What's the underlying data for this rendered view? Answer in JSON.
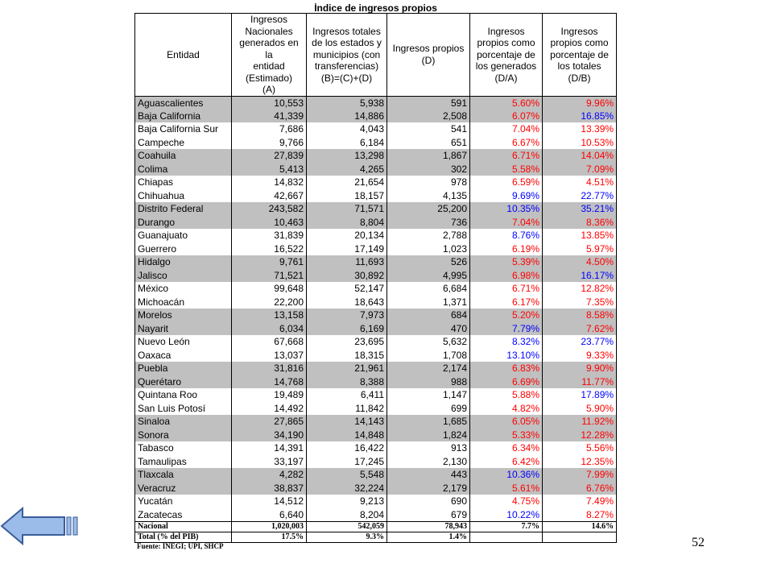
{
  "title": "Índice de ingresos propios",
  "headers": [
    "Entidad",
    "Ingresos\nNacionales\ngenerados en la\nentidad\n(Estimado)\n(A)",
    "Ingresos totales\nde los estados y\nmunicipios (con\ntransferencias)\n(B)=(C)+(D)",
    "Ingresos propios\n(D)",
    "Ingresos\npropios como\nporcentaje de\nlos generados\n(D/A)",
    "Ingresos\npropios como\nporcentaje de\nlos totales\n(D/B)"
  ],
  "rows": [
    [
      "Aguascalientes",
      "10,553",
      "5,938",
      "591",
      "5.60%",
      "9.96%"
    ],
    [
      "Baja California",
      "41,339",
      "14,886",
      "2,508",
      "6.07%",
      "16.85%"
    ],
    [
      "Baja California Sur",
      "7,686",
      "4,043",
      "541",
      "7.04%",
      "13.39%"
    ],
    [
      "Campeche",
      "9,766",
      "6,184",
      "651",
      "6.67%",
      "10.53%"
    ],
    [
      "Coahuila",
      "27,839",
      "13,298",
      "1,867",
      "6.71%",
      "14.04%"
    ],
    [
      "Colima",
      "5,413",
      "4,265",
      "302",
      "5.58%",
      "7.09%"
    ],
    [
      "Chiapas",
      "14,832",
      "21,654",
      "978",
      "6.59%",
      "4.51%"
    ],
    [
      "Chihuahua",
      "42,667",
      "18,157",
      "4,135",
      "9.69%",
      "22.77%"
    ],
    [
      "Distrito Federal",
      "243,582",
      "71,571",
      "25,200",
      "10.35%",
      "35.21%"
    ],
    [
      "Durango",
      "10,463",
      "8,804",
      "736",
      "7.04%",
      "8.36%"
    ],
    [
      "Guanajuato",
      "31,839",
      "20,134",
      "2,788",
      "8.76%",
      "13.85%"
    ],
    [
      "Guerrero",
      "16,522",
      "17,149",
      "1,023",
      "6.19%",
      "5.97%"
    ],
    [
      "Hidalgo",
      "9,761",
      "11,693",
      "526",
      "5.39%",
      "4.50%"
    ],
    [
      "Jalisco",
      "71,521",
      "30,892",
      "4,995",
      "6.98%",
      "16.17%"
    ],
    [
      "México",
      "99,648",
      "52,147",
      "6,684",
      "6.71%",
      "12.82%"
    ],
    [
      "Michoacán",
      "22,200",
      "18,643",
      "1,371",
      "6.17%",
      "7.35%"
    ],
    [
      "Morelos",
      "13,158",
      "7,973",
      "684",
      "5.20%",
      "8.58%"
    ],
    [
      "Nayarit",
      "6,034",
      "6,169",
      "470",
      "7.79%",
      "7.62%"
    ],
    [
      "Nuevo León",
      "67,668",
      "23,695",
      "5,632",
      "8.32%",
      "23.77%"
    ],
    [
      "Oaxaca",
      "13,037",
      "18,315",
      "1,708",
      "13.10%",
      "9.33%"
    ],
    [
      "Puebla",
      "31,816",
      "21,961",
      "2,174",
      "6.83%",
      "9.90%"
    ],
    [
      "Querétaro",
      "14,768",
      "8,388",
      "988",
      "6.69%",
      "11.77%"
    ],
    [
      "Quintana Roo",
      "19,489",
      "6,411",
      "1,147",
      "5.88%",
      "17.89%"
    ],
    [
      "San Luis Potosí",
      "14,492",
      "11,842",
      "699",
      "4.82%",
      "5.90%"
    ],
    [
      "Sinaloa",
      "27,865",
      "14,143",
      "1,685",
      "6.05%",
      "11.92%"
    ],
    [
      "Sonora",
      "34,190",
      "14,848",
      "1,824",
      "5.33%",
      "12.28%"
    ],
    [
      "Tabasco",
      "14,391",
      "16,422",
      "913",
      "6.34%",
      "5.56%"
    ],
    [
      "Tamaulipas",
      "33,197",
      "17,245",
      "2,130",
      "6.42%",
      "12.35%"
    ],
    [
      "Tlaxcala",
      "4,282",
      "5,548",
      "443",
      "10.36%",
      "7.99%"
    ],
    [
      "Veracruz",
      "38,837",
      "32,224",
      "2,179",
      "5.61%",
      "6.76%"
    ],
    [
      "Yucatán",
      "14,512",
      "9,213",
      "690",
      "4.75%",
      "7.49%"
    ],
    [
      "Zacatecas",
      "6,640",
      "8,204",
      "679",
      "10.22%",
      "8.27%"
    ]
  ],
  "pct_colors": [
    [
      "red",
      "red"
    ],
    [
      "red",
      "blue"
    ],
    [
      "red",
      "red"
    ],
    [
      "red",
      "red"
    ],
    [
      "red",
      "red"
    ],
    [
      "red",
      "red"
    ],
    [
      "red",
      "red"
    ],
    [
      "blue",
      "blue"
    ],
    [
      "blue",
      "blue"
    ],
    [
      "red",
      "red"
    ],
    [
      "blue",
      "red"
    ],
    [
      "red",
      "red"
    ],
    [
      "red",
      "red"
    ],
    [
      "red",
      "blue"
    ],
    [
      "red",
      "red"
    ],
    [
      "red",
      "red"
    ],
    [
      "red",
      "red"
    ],
    [
      "blue",
      "red"
    ],
    [
      "blue",
      "blue"
    ],
    [
      "blue",
      "red"
    ],
    [
      "red",
      "red"
    ],
    [
      "red",
      "red"
    ],
    [
      "red",
      "blue"
    ],
    [
      "red",
      "red"
    ],
    [
      "red",
      "red"
    ],
    [
      "red",
      "red"
    ],
    [
      "red",
      "red"
    ],
    [
      "red",
      "red"
    ],
    [
      "blue",
      "red"
    ],
    [
      "red",
      "red"
    ],
    [
      "red",
      "red"
    ],
    [
      "blue",
      "red"
    ]
  ],
  "totals": [
    [
      "Nacional",
      "1,020,003",
      "542,059",
      "78,943",
      "7.7%",
      "14.6%"
    ],
    [
      "Total (% del PIB)",
      "17.5%",
      "9.3%",
      "1.4%"
    ]
  ],
  "source": "Fuente: INEGI; UPI, SHCP",
  "page_number": "52"
}
